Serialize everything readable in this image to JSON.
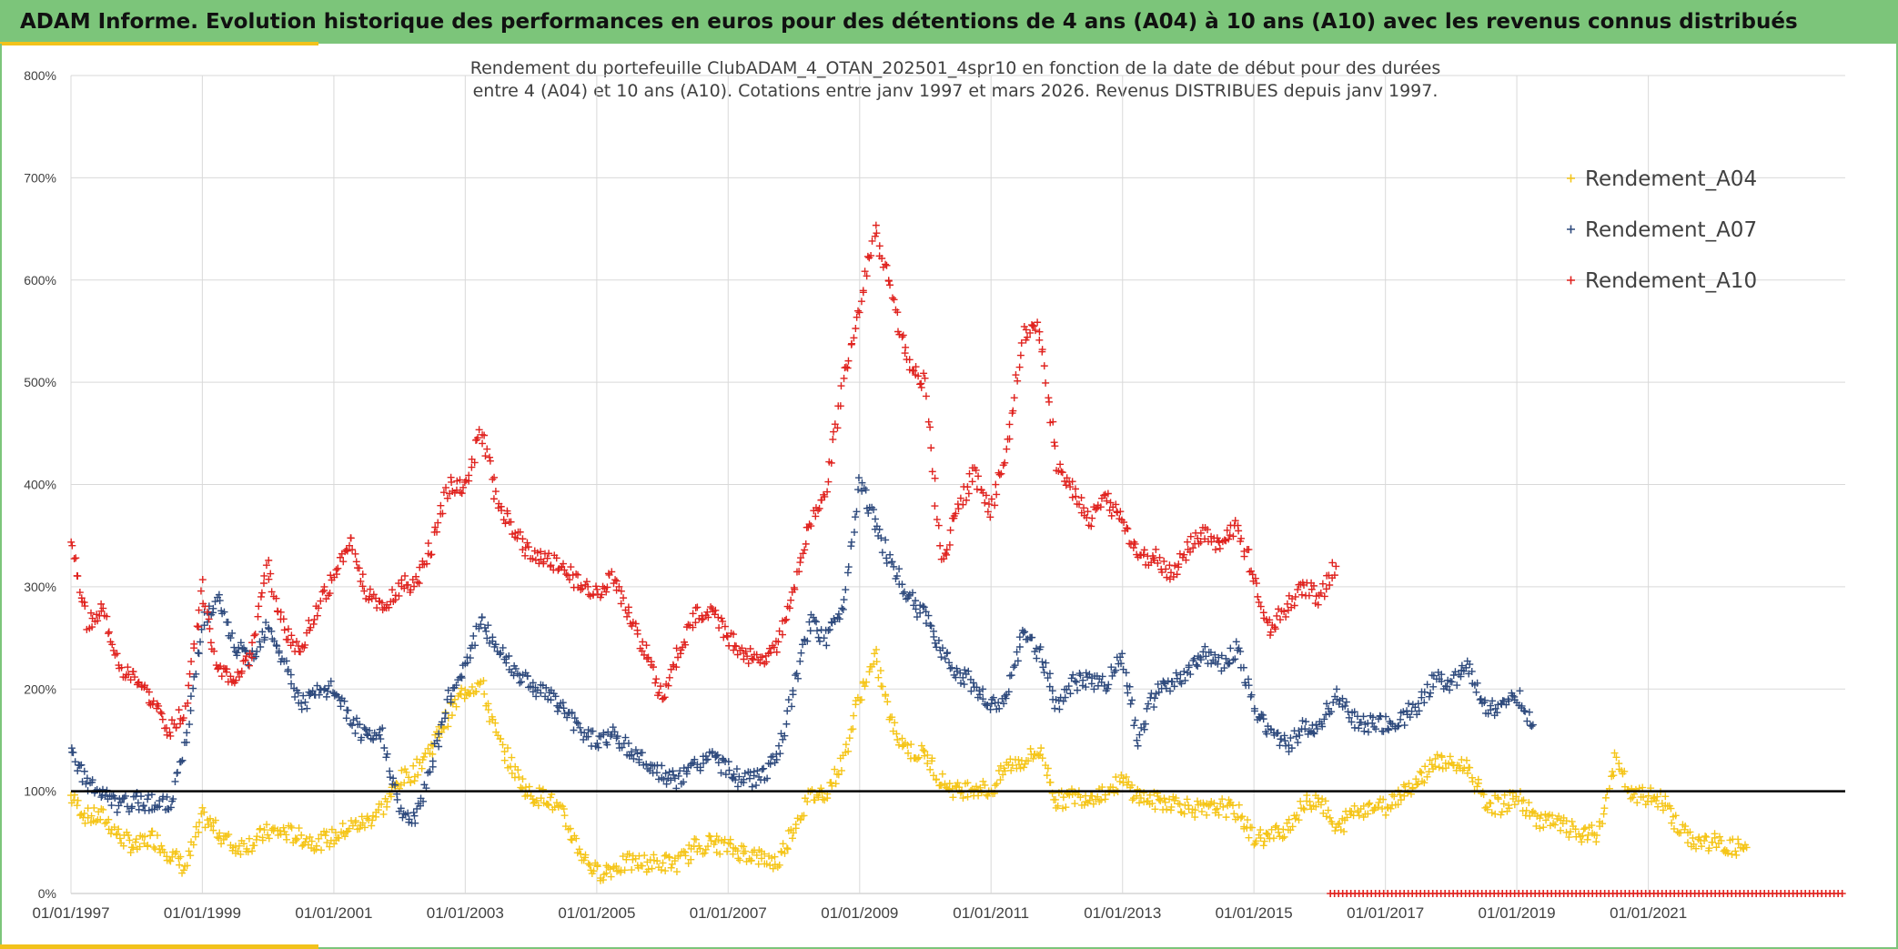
{
  "header": {
    "title": "ADAM Informe. Evolution historique des performances en euros pour des détentions de 4 ans (A04) à 10 ans (A10) avec les revenus connus distribués"
  },
  "colors": {
    "header_bg": "#7cc57a",
    "accent": "#f2c21b",
    "a04": "#f5c518",
    "a07": "#2e4a7d",
    "a10": "#e0231f",
    "reference_line": "#000000"
  },
  "chart_data": {
    "type": "scatter",
    "title_line1": "Rendement du portefeuille ClubADAM_4_OTAN_202501_4spr10  en fonction de la date de début pour des durées",
    "title_line2": "entre 4 (A04) et 10 ans (A10). Cotations entre janv 1997 et mars 2026. Revenus DISTRIBUES depuis janv 1997.",
    "marker": "+",
    "x_range": [
      "1997-01-01",
      "2023-12-31"
    ],
    "ylim": [
      0,
      800
    ],
    "y_ticks": [
      0,
      100,
      200,
      300,
      400,
      500,
      600,
      700,
      800
    ],
    "y_tick_labels": [
      "0%",
      "100%",
      "200%",
      "300%",
      "400%",
      "500%",
      "600%",
      "700%",
      "800%"
    ],
    "x_ticks": [
      "1997-01-01",
      "1999-01-01",
      "2001-01-01",
      "2003-01-01",
      "2005-01-01",
      "2007-01-01",
      "2009-01-01",
      "2011-01-01",
      "2013-01-01",
      "2015-01-01",
      "2017-01-01",
      "2019-01-01",
      "2021-01-01"
    ],
    "x_tick_labels": [
      "01/01/1997",
      "01/01/1999",
      "01/01/2001",
      "01/01/2003",
      "01/01/2005",
      "01/01/2007",
      "01/01/2009",
      "01/01/2011",
      "01/01/2013",
      "01/01/2015",
      "01/01/2017",
      "01/01/2019",
      "01/01/2021"
    ],
    "grid": true,
    "legend_position": "top-right",
    "reference_line_y": 100,
    "series": [
      {
        "name": "Rendement_A04",
        "color": "#f5c518",
        "points": [
          [
            "1997-01",
            95
          ],
          [
            "1997-04",
            75
          ],
          [
            "1997-07",
            75
          ],
          [
            "1997-10",
            55
          ],
          [
            "1998-01",
            45
          ],
          [
            "1998-04",
            55
          ],
          [
            "1998-07",
            40
          ],
          [
            "1998-10",
            25
          ],
          [
            "1999-01",
            75
          ],
          [
            "1999-04",
            60
          ],
          [
            "1999-07",
            45
          ],
          [
            "1999-10",
            50
          ],
          [
            "2000-01",
            60
          ],
          [
            "2000-04",
            60
          ],
          [
            "2000-07",
            55
          ],
          [
            "2000-10",
            50
          ],
          [
            "2001-01",
            55
          ],
          [
            "2001-04",
            65
          ],
          [
            "2001-07",
            70
          ],
          [
            "2001-10",
            85
          ],
          [
            "2002-01",
            110
          ],
          [
            "2002-04",
            120
          ],
          [
            "2002-07",
            145
          ],
          [
            "2002-10",
            175
          ],
          [
            "2003-01",
            200
          ],
          [
            "2003-04",
            205
          ],
          [
            "2003-07",
            150
          ],
          [
            "2003-10",
            120
          ],
          [
            "2004-01",
            95
          ],
          [
            "2004-04",
            95
          ],
          [
            "2004-07",
            75
          ],
          [
            "2004-10",
            40
          ],
          [
            "2005-01",
            20
          ],
          [
            "2005-04",
            25
          ],
          [
            "2005-07",
            30
          ],
          [
            "2005-10",
            30
          ],
          [
            "2006-01",
            30
          ],
          [
            "2006-04",
            30
          ],
          [
            "2006-07",
            45
          ],
          [
            "2006-10",
            50
          ],
          [
            "2007-01",
            45
          ],
          [
            "2007-04",
            40
          ],
          [
            "2007-07",
            35
          ],
          [
            "2007-10",
            30
          ],
          [
            "2008-01",
            65
          ],
          [
            "2008-04",
            95
          ],
          [
            "2008-07",
            100
          ],
          [
            "2008-10",
            130
          ],
          [
            "2009-01",
            195
          ],
          [
            "2009-04",
            230
          ],
          [
            "2009-07",
            165
          ],
          [
            "2009-10",
            140
          ],
          [
            "2010-01",
            135
          ],
          [
            "2010-04",
            110
          ],
          [
            "2010-07",
            100
          ],
          [
            "2010-10",
            105
          ],
          [
            "2011-01",
            100
          ],
          [
            "2011-04",
            125
          ],
          [
            "2011-07",
            130
          ],
          [
            "2011-10",
            140
          ],
          [
            "2012-01",
            90
          ],
          [
            "2012-04",
            95
          ],
          [
            "2012-07",
            95
          ],
          [
            "2012-10",
            100
          ],
          [
            "2013-01",
            110
          ],
          [
            "2013-04",
            95
          ],
          [
            "2013-07",
            90
          ],
          [
            "2013-10",
            90
          ],
          [
            "2014-01",
            85
          ],
          [
            "2014-04",
            80
          ],
          [
            "2014-07",
            85
          ],
          [
            "2014-10",
            80
          ],
          [
            "2015-01",
            55
          ],
          [
            "2015-04",
            55
          ],
          [
            "2015-07",
            65
          ],
          [
            "2015-10",
            85
          ],
          [
            "2016-01",
            95
          ],
          [
            "2016-04",
            60
          ],
          [
            "2016-07",
            80
          ],
          [
            "2016-10",
            85
          ],
          [
            "2017-01",
            85
          ],
          [
            "2017-04",
            100
          ],
          [
            "2017-07",
            110
          ],
          [
            "2017-10",
            130
          ],
          [
            "2018-01",
            125
          ],
          [
            "2018-04",
            125
          ],
          [
            "2018-07",
            90
          ],
          [
            "2018-10",
            85
          ],
          [
            "2019-01",
            95
          ],
          [
            "2019-04",
            75
          ],
          [
            "2019-07",
            70
          ],
          [
            "2019-10",
            65
          ],
          [
            "2020-01",
            55
          ],
          [
            "2020-04",
            60
          ],
          [
            "2020-07",
            130
          ],
          [
            "2020-10",
            95
          ],
          [
            "2021-01",
            95
          ],
          [
            "2021-04",
            90
          ],
          [
            "2021-07",
            60
          ],
          [
            "2021-10",
            50
          ],
          [
            "2022-01",
            50
          ],
          [
            "2022-04",
            45
          ],
          [
            "2022-07",
            45
          ]
        ]
      },
      {
        "name": "Rendement_A07",
        "color": "#2e4a7d",
        "points": [
          [
            "1997-01",
            135
          ],
          [
            "1997-04",
            110
          ],
          [
            "1997-07",
            95
          ],
          [
            "1997-10",
            85
          ],
          [
            "1998-01",
            90
          ],
          [
            "1998-04",
            90
          ],
          [
            "1998-07",
            85
          ],
          [
            "1998-10",
            145
          ],
          [
            "1999-01",
            265
          ],
          [
            "1999-04",
            285
          ],
          [
            "1999-07",
            240
          ],
          [
            "1999-10",
            230
          ],
          [
            "2000-01",
            265
          ],
          [
            "2000-04",
            225
          ],
          [
            "2000-07",
            185
          ],
          [
            "2000-10",
            195
          ],
          [
            "2001-01",
            200
          ],
          [
            "2001-04",
            170
          ],
          [
            "2001-07",
            150
          ],
          [
            "2001-10",
            155
          ],
          [
            "2002-01",
            80
          ],
          [
            "2002-04",
            70
          ],
          [
            "2002-07",
            130
          ],
          [
            "2002-10",
            190
          ],
          [
            "2003-01",
            225
          ],
          [
            "2003-04",
            265
          ],
          [
            "2003-07",
            240
          ],
          [
            "2003-10",
            220
          ],
          [
            "2004-01",
            205
          ],
          [
            "2004-04",
            195
          ],
          [
            "2004-07",
            180
          ],
          [
            "2004-10",
            160
          ],
          [
            "2005-01",
            150
          ],
          [
            "2005-04",
            155
          ],
          [
            "2005-07",
            140
          ],
          [
            "2005-10",
            130
          ],
          [
            "2006-01",
            115
          ],
          [
            "2006-04",
            110
          ],
          [
            "2006-07",
            125
          ],
          [
            "2006-10",
            135
          ],
          [
            "2007-01",
            120
          ],
          [
            "2007-04",
            110
          ],
          [
            "2007-07",
            115
          ],
          [
            "2007-10",
            130
          ],
          [
            "2008-01",
            200
          ],
          [
            "2008-04",
            265
          ],
          [
            "2008-07",
            250
          ],
          [
            "2008-10",
            280
          ],
          [
            "2009-01",
            405
          ],
          [
            "2009-04",
            360
          ],
          [
            "2009-07",
            320
          ],
          [
            "2009-10",
            290
          ],
          [
            "2010-01",
            270
          ],
          [
            "2010-04",
            240
          ],
          [
            "2010-07",
            215
          ],
          [
            "2010-10",
            205
          ],
          [
            "2011-01",
            180
          ],
          [
            "2011-04",
            195
          ],
          [
            "2011-07",
            255
          ],
          [
            "2011-10",
            235
          ],
          [
            "2012-01",
            185
          ],
          [
            "2012-04",
            205
          ],
          [
            "2012-07",
            210
          ],
          [
            "2012-10",
            205
          ],
          [
            "2013-01",
            235
          ],
          [
            "2013-04",
            150
          ],
          [
            "2013-07",
            195
          ],
          [
            "2013-10",
            205
          ],
          [
            "2014-01",
            215
          ],
          [
            "2014-04",
            235
          ],
          [
            "2014-07",
            225
          ],
          [
            "2014-10",
            240
          ],
          [
            "2015-01",
            180
          ],
          [
            "2015-04",
            160
          ],
          [
            "2015-07",
            145
          ],
          [
            "2015-10",
            160
          ],
          [
            "2016-01",
            165
          ],
          [
            "2016-04",
            195
          ],
          [
            "2016-07",
            170
          ],
          [
            "2016-10",
            165
          ],
          [
            "2017-01",
            165
          ],
          [
            "2017-04",
            170
          ],
          [
            "2017-07",
            185
          ],
          [
            "2017-10",
            210
          ],
          [
            "2018-01",
            205
          ],
          [
            "2018-04",
            225
          ],
          [
            "2018-07",
            185
          ],
          [
            "2018-10",
            180
          ],
          [
            "2019-01",
            195
          ],
          [
            "2019-04",
            165
          ]
        ]
      },
      {
        "name": "Rendement_A10",
        "color": "#e0231f",
        "points": [
          [
            "1997-01",
            345
          ],
          [
            "1997-04",
            265
          ],
          [
            "1997-07",
            280
          ],
          [
            "1997-10",
            215
          ],
          [
            "1998-01",
            210
          ],
          [
            "1998-04",
            185
          ],
          [
            "1998-07",
            160
          ],
          [
            "1998-10",
            180
          ],
          [
            "1999-01",
            300
          ],
          [
            "1999-04",
            215
          ],
          [
            "1999-07",
            210
          ],
          [
            "1999-10",
            235
          ],
          [
            "2000-01",
            320
          ],
          [
            "2000-04",
            255
          ],
          [
            "2000-07",
            240
          ],
          [
            "2000-10",
            280
          ],
          [
            "2001-01",
            310
          ],
          [
            "2001-04",
            345
          ],
          [
            "2001-07",
            295
          ],
          [
            "2001-10",
            280
          ],
          [
            "2002-01",
            300
          ],
          [
            "2002-04",
            305
          ],
          [
            "2002-07",
            340
          ],
          [
            "2002-10",
            400
          ],
          [
            "2003-01",
            400
          ],
          [
            "2003-04",
            455
          ],
          [
            "2003-07",
            380
          ],
          [
            "2003-10",
            355
          ],
          [
            "2004-01",
            330
          ],
          [
            "2004-04",
            325
          ],
          [
            "2004-07",
            320
          ],
          [
            "2004-10",
            300
          ],
          [
            "2005-01",
            295
          ],
          [
            "2005-04",
            310
          ],
          [
            "2005-07",
            270
          ],
          [
            "2005-10",
            235
          ],
          [
            "2006-01",
            190
          ],
          [
            "2006-04",
            235
          ],
          [
            "2006-07",
            270
          ],
          [
            "2006-10",
            280
          ],
          [
            "2007-01",
            250
          ],
          [
            "2007-04",
            235
          ],
          [
            "2007-07",
            230
          ],
          [
            "2007-10",
            240
          ],
          [
            "2008-01",
            300
          ],
          [
            "2008-04",
            360
          ],
          [
            "2008-07",
            400
          ],
          [
            "2008-10",
            500
          ],
          [
            "2009-01",
            575
          ],
          [
            "2009-04",
            650
          ],
          [
            "2009-07",
            580
          ],
          [
            "2009-10",
            515
          ],
          [
            "2010-01",
            500
          ],
          [
            "2010-04",
            320
          ],
          [
            "2010-07",
            380
          ],
          [
            "2010-10",
            410
          ],
          [
            "2011-01",
            375
          ],
          [
            "2011-04",
            440
          ],
          [
            "2011-07",
            550
          ],
          [
            "2011-10",
            550
          ],
          [
            "2012-01",
            420
          ],
          [
            "2012-04",
            395
          ],
          [
            "2012-07",
            365
          ],
          [
            "2012-10",
            385
          ],
          [
            "2013-01",
            365
          ],
          [
            "2013-04",
            330
          ],
          [
            "2013-07",
            330
          ],
          [
            "2013-10",
            310
          ],
          [
            "2014-01",
            340
          ],
          [
            "2014-04",
            350
          ],
          [
            "2014-07",
            340
          ],
          [
            "2014-10",
            360
          ],
          [
            "2015-01",
            310
          ],
          [
            "2015-04",
            260
          ],
          [
            "2015-07",
            280
          ],
          [
            "2015-10",
            300
          ],
          [
            "2016-01",
            290
          ],
          [
            "2016-04",
            320
          ]
        ]
      }
    ],
    "bottom_band": {
      "color": "#e0231f",
      "from": "2016-03-01",
      "to": "2023-12-31",
      "y": 0
    }
  }
}
